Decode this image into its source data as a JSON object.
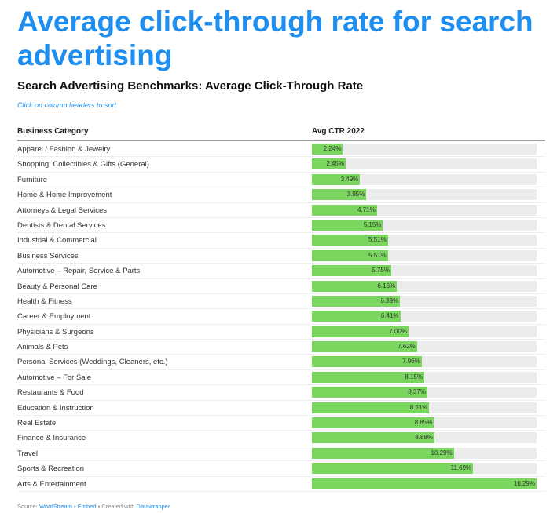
{
  "title": "Average click-through rate for search advertising",
  "subtitle": "Search Advertising Benchmarks: Average Click-Through Rate",
  "hint": "Click on column headers to sort.",
  "footer": {
    "source_label": "Source:",
    "source": "WordStream",
    "sep1": "•",
    "embed": "Embed",
    "sep2": "• Created with",
    "tool": "Datawrapper"
  },
  "chart_data": {
    "type": "table",
    "title": "Search Advertising Benchmarks: Average Click-Through Rate",
    "columns": [
      "Business Category",
      "Avg CTR 2022"
    ],
    "max": 16.29,
    "bar_color": "#7ad65e",
    "rows": [
      {
        "category": "Apparel / Fashion & Jewelry",
        "value": 2.24,
        "label": "2.24%"
      },
      {
        "category": "Shopping, Collectibles & Gifts (General)",
        "value": 2.45,
        "label": "2.45%"
      },
      {
        "category": "Furniture",
        "value": 3.49,
        "label": "3.49%"
      },
      {
        "category": "Home & Home Improvement",
        "value": 3.95,
        "label": "3.95%"
      },
      {
        "category": "Attorneys & Legal Services",
        "value": 4.71,
        "label": "4.71%"
      },
      {
        "category": "Dentists & Dental Services",
        "value": 5.15,
        "label": "5.15%"
      },
      {
        "category": "Industrial & Commercial",
        "value": 5.51,
        "label": "5.51%"
      },
      {
        "category": "Business Services",
        "value": 5.51,
        "label": "5.51%"
      },
      {
        "category": "Automotive – Repair, Service & Parts",
        "value": 5.75,
        "label": "5.75%"
      },
      {
        "category": "Beauty & Personal Care",
        "value": 6.16,
        "label": "6.16%"
      },
      {
        "category": "Health & Fitness",
        "value": 6.39,
        "label": "6.39%"
      },
      {
        "category": "Career & Employment",
        "value": 6.41,
        "label": "6.41%"
      },
      {
        "category": "Physicians & Surgeons",
        "value": 7.0,
        "label": "7.00%"
      },
      {
        "category": "Animals & Pets",
        "value": 7.62,
        "label": "7.62%"
      },
      {
        "category": "Personal Services (Weddings, Cleaners, etc.)",
        "value": 7.96,
        "label": "7.96%"
      },
      {
        "category": "Automotive – For Sale",
        "value": 8.15,
        "label": "8.15%"
      },
      {
        "category": "Restaurants & Food",
        "value": 8.37,
        "label": "8.37%"
      },
      {
        "category": "Education & Instruction",
        "value": 8.51,
        "label": "8.51%"
      },
      {
        "category": "Real Estate",
        "value": 8.85,
        "label": "8.85%"
      },
      {
        "category": "Finance & Insurance",
        "value": 8.88,
        "label": "8.88%"
      },
      {
        "category": "Travel",
        "value": 10.29,
        "label": "10.29%"
      },
      {
        "category": "Sports & Recreation",
        "value": 11.69,
        "label": "11.69%"
      },
      {
        "category": "Arts & Entertainment",
        "value": 16.29,
        "label": "16.29%"
      }
    ]
  }
}
